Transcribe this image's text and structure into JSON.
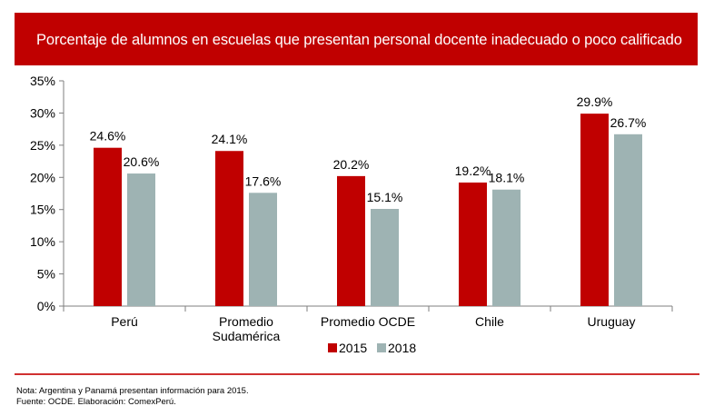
{
  "header": {
    "title": "Porcentaje de alumnos en escuelas que presentan personal docente inadecuado o poco calificado"
  },
  "chart_data": {
    "type": "bar",
    "title": "Porcentaje de alumnos en escuelas que presentan personal docente inadecuado o poco calificado",
    "categories": [
      [
        "Perú"
      ],
      [
        "Promedio",
        "Sudamérica"
      ],
      [
        "Promedio OCDE"
      ],
      [
        "Chile"
      ],
      [
        "Uruguay"
      ]
    ],
    "series": [
      {
        "name": "2015",
        "values": [
          24.6,
          24.1,
          20.2,
          19.2,
          29.9
        ],
        "color": "#c00000"
      },
      {
        "name": "2018",
        "values": [
          20.6,
          17.6,
          15.1,
          18.1,
          26.7
        ],
        "color": "#9eb3b3"
      }
    ],
    "value_labels": [
      [
        "24.6%",
        "24.1%",
        "20.2%",
        "19.2%",
        "29.9%"
      ],
      [
        "20.6%",
        "17.6%",
        "15.1%",
        "18.1%",
        "26.7%"
      ]
    ],
    "ylim": [
      0,
      35
    ],
    "yticks": [
      "0%",
      "5%",
      "10%",
      "15%",
      "20%",
      "25%",
      "30%",
      "35%"
    ],
    "xlabel": "",
    "ylabel": "",
    "legend_position": "bottom-center"
  },
  "footer": {
    "note": "Nota: Argentina y Panamá presentan información para 2015.",
    "source": "Fuente: OCDE. Elaboración: ComexPerú."
  },
  "colors": {
    "header_bg": "#c00000",
    "series_2015": "#c00000",
    "series_2018": "#9eb3b3",
    "rule": "#d03030"
  }
}
